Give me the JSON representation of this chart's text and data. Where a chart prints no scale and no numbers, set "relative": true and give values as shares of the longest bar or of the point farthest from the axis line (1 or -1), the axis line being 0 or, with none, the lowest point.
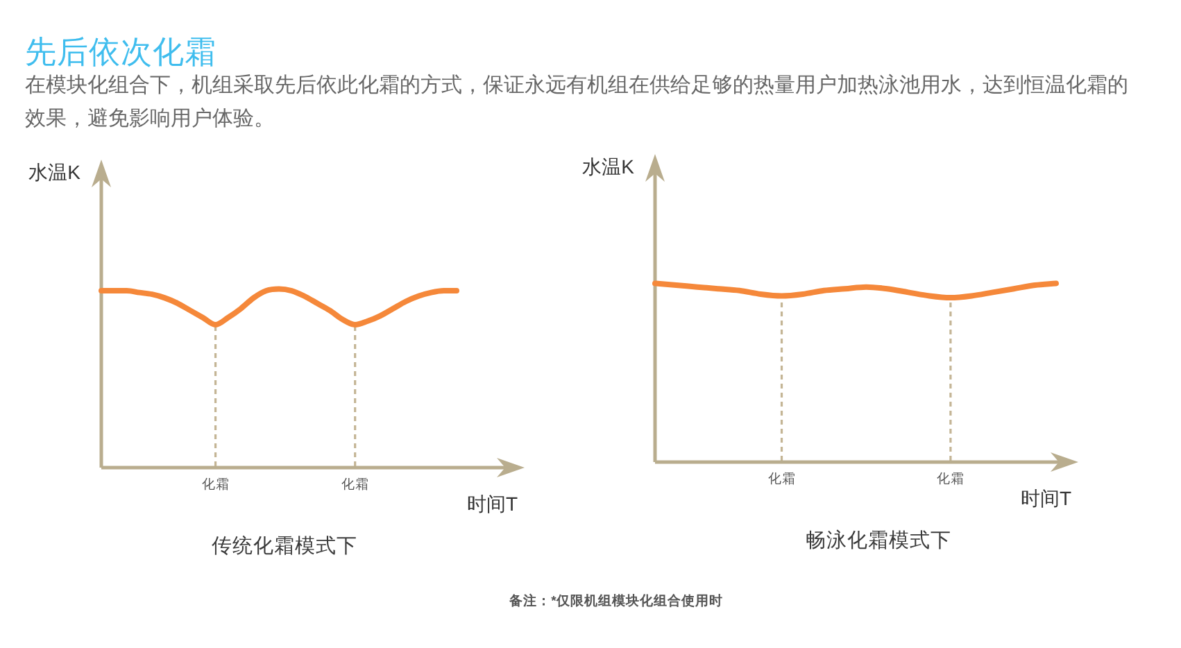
{
  "chart_data": [
    {
      "type": "other",
      "title": "先后依次化霜",
      "subtitle": "在模块化组合下，机组采取先后依此化霜的方式，保证永远有机组在供给足够的热量用户加热泳池用水，达到恒温化霜的效果，避免影响用户体验。"
    },
    {
      "type": "line",
      "title": "传统化霜模式下",
      "xlabel": "时间T",
      "ylabel": "水温K",
      "relative": true,
      "tick_labels": "x",
      "grid": "x",
      "color": "#f5883a",
      "categories": [
        null,
        null,
        null,
        null,
        null,
        null,
        null,
        null,
        null,
        "化霜",
        null,
        null,
        null,
        null,
        null,
        null,
        null,
        null,
        null,
        null,
        "化霜",
        null,
        null,
        null,
        null,
        null,
        null,
        null,
        null
      ],
      "values": [
        0.99,
        0.99,
        0.99,
        0.98,
        0.97,
        0.95,
        0.92,
        0.88,
        0.84,
        0.8,
        0.84,
        0.89,
        0.95,
        0.99,
        1.0,
        0.99,
        0.96,
        0.92,
        0.88,
        0.83,
        0.8,
        0.82,
        0.85,
        0.89,
        0.93,
        0.96,
        0.98,
        0.99,
        0.99
      ]
    },
    {
      "type": "line",
      "title": "畅泳化霜模式下",
      "xlabel": "时间T",
      "ylabel": "水温K",
      "relative": true,
      "tick_labels": "x",
      "grid": "x",
      "color": "#f5883a",
      "categories": [
        null,
        null,
        null,
        null,
        null,
        null,
        "化霜",
        null,
        null,
        null,
        null,
        null,
        null,
        null,
        "化霜",
        null,
        null,
        null,
        null,
        null
      ],
      "values": [
        1.0,
        0.99,
        0.98,
        0.97,
        0.96,
        0.94,
        0.93,
        0.94,
        0.96,
        0.97,
        0.98,
        0.97,
        0.95,
        0.93,
        0.92,
        0.93,
        0.95,
        0.97,
        0.99,
        1.0
      ]
    },
    {
      "type": "other",
      "annotations": [
        "备注：*仅限机组模块化组合使用时"
      ]
    }
  ]
}
